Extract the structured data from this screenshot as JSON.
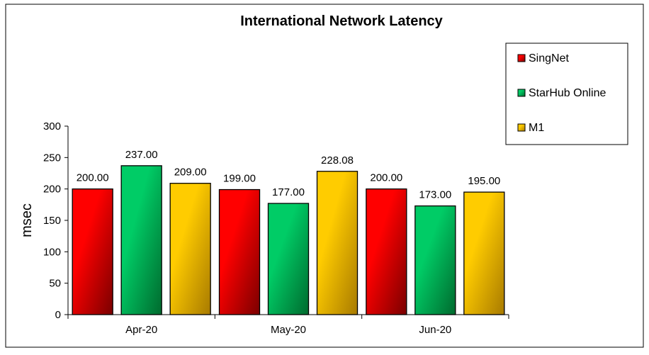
{
  "chart_data": {
    "type": "bar",
    "title": "International Network Latency",
    "ylabel": "msec",
    "xlabel": "",
    "categories": [
      "Apr-20",
      "May-20",
      "Jun-20"
    ],
    "ylim": [
      0,
      300
    ],
    "yticks": [
      0,
      50,
      100,
      150,
      200,
      250,
      300
    ],
    "grid": false,
    "legend_position": "top-right",
    "series": [
      {
        "name": "SingNet",
        "values": [
          200.0,
          199.0,
          200.0
        ],
        "labels": [
          "200.00",
          "199.00",
          "200.00"
        ],
        "color": "#ff0000",
        "color_dark": "#7a0000"
      },
      {
        "name": "StarHub Online",
        "values": [
          237.0,
          177.0,
          173.0
        ],
        "labels": [
          "237.00",
          "177.00",
          "173.00"
        ],
        "color": "#00cc66",
        "color_dark": "#006a2e"
      },
      {
        "name": "M1",
        "values": [
          209.0,
          228.08,
          195.0
        ],
        "labels": [
          "209.00",
          "228.08",
          "195.00"
        ],
        "color": "#ffcc00",
        "color_dark": "#a87a00"
      }
    ]
  }
}
